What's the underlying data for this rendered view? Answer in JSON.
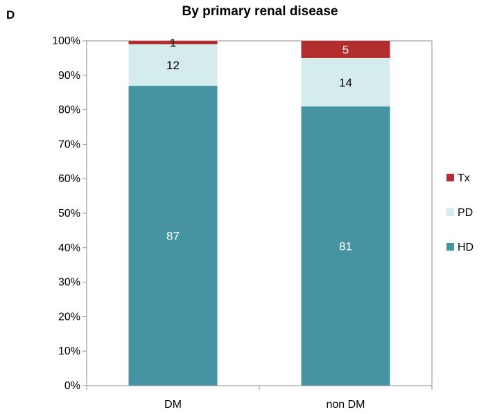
{
  "panel_letter": "D",
  "chart_data": {
    "type": "bar",
    "stacked": true,
    "title": "By primary renal disease",
    "xlabel": "",
    "ylabel": "",
    "ylim": [
      0,
      100
    ],
    "yticks": [
      0,
      10,
      20,
      30,
      40,
      50,
      60,
      70,
      80,
      90,
      100
    ],
    "ytick_suffix": "%",
    "categories": [
      "DM",
      "non DM"
    ],
    "series": [
      {
        "name": "HD",
        "values": [
          87,
          81
        ],
        "color": "#4693A2",
        "label_color": "#ffffff"
      },
      {
        "name": "PD",
        "values": [
          12,
          14
        ],
        "color": "#D4ECEC",
        "label_color": "#000000"
      },
      {
        "name": "Tx",
        "values": [
          1,
          5
        ],
        "color": "#B22E2E",
        "label_color": "#ffffff"
      }
    ],
    "data_labels": [
      [
        "87",
        "81"
      ],
      [
        "12",
        "14"
      ],
      [
        "1",
        "5"
      ]
    ],
    "label_color_overrides": {
      "2": {
        "0": "#000000"
      }
    },
    "legend": {
      "position": "right",
      "order": [
        "Tx",
        "PD",
        "HD"
      ]
    },
    "grid": false
  }
}
